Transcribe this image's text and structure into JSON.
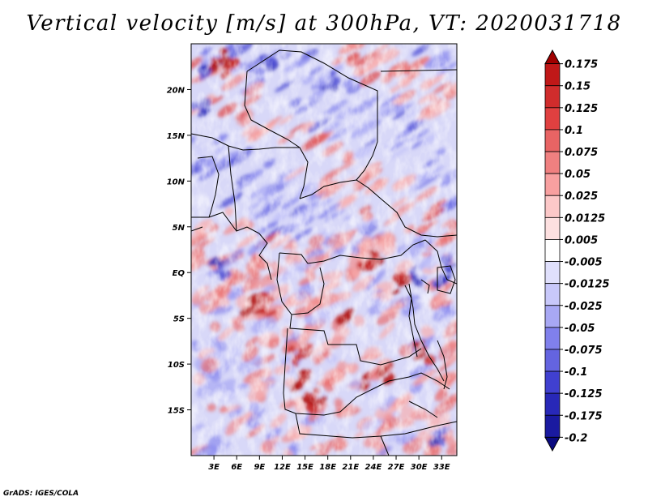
{
  "chart_data": {
    "type": "heatmap",
    "title": "Vertical velocity [m/s] at 300hPa, VT: 2020031718",
    "variable": "Vertical velocity",
    "units": "m/s",
    "level": "300hPa",
    "valid_time": "2020031718",
    "x_ticks": [
      {
        "value": 3,
        "label": "3E"
      },
      {
        "value": 6,
        "label": "6E"
      },
      {
        "value": 9,
        "label": "9E"
      },
      {
        "value": 12,
        "label": "12E"
      },
      {
        "value": 15,
        "label": "15E"
      },
      {
        "value": 18,
        "label": "18E"
      },
      {
        "value": 21,
        "label": "21E"
      },
      {
        "value": 24,
        "label": "24E"
      },
      {
        "value": 27,
        "label": "27E"
      },
      {
        "value": 30,
        "label": "30E"
      },
      {
        "value": 33,
        "label": "33E"
      }
    ],
    "y_ticks": [
      {
        "value": 20,
        "label": "20N"
      },
      {
        "value": 15,
        "label": "15N"
      },
      {
        "value": 10,
        "label": "10N"
      },
      {
        "value": 5,
        "label": "5N"
      },
      {
        "value": 0,
        "label": "EQ"
      },
      {
        "value": -5,
        "label": "5S"
      },
      {
        "value": -10,
        "label": "10S"
      },
      {
        "value": -15,
        "label": "15S"
      }
    ],
    "lon_range": [
      0,
      35
    ],
    "lat_range": [
      -20,
      25
    ],
    "colorbar_levels": [
      "0.175",
      "0.15",
      "0.125",
      "0.1",
      "0.075",
      "0.05",
      "0.025",
      "0.0125",
      "0.005",
      "-0.005",
      "-0.0125",
      "-0.025",
      "-0.05",
      "-0.075",
      "-0.1",
      "-0.125",
      "-0.175",
      "-0.2"
    ],
    "colorbar_colors": [
      "#a00000",
      "#c01818",
      "#d02c2c",
      "#e04040",
      "#e86464",
      "#f08080",
      "#f8a0a0",
      "#fcc8c8",
      "#fde0e0",
      "#ffffff",
      "#e0e0fc",
      "#c8c8fa",
      "#a8a8f4",
      "#8080ec",
      "#6464e0",
      "#4040d0",
      "#2828b8",
      "#1a1aa0",
      "#0a0a80"
    ],
    "field_summary": "Alternating SW-NE bands of ascent (red) and descent (blue) north of 5N; broad ascent over the Congo basin and southern Africa with strongest cores near 6-10S and 12-18S; descent over East Africa and the Atlantic coast."
  },
  "credit": "GrADS: IGES/COLA"
}
